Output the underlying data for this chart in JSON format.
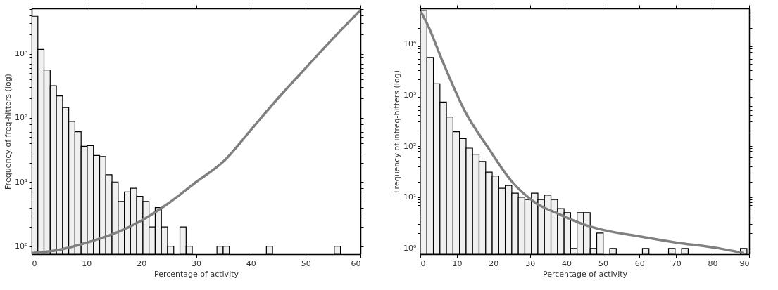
{
  "chart_data": [
    {
      "type": "histogram",
      "xlabel": "Percentage of activity",
      "ylabel": "Frequency of freq-hitters (log)",
      "log": "y",
      "grid": false,
      "color": "#f0f0f0",
      "bins": [
        0,
        1.13,
        2.25,
        3.38,
        4.51,
        5.64,
        6.76,
        7.89,
        9.02,
        10.14,
        11.27,
        12.4,
        13.52,
        14.65,
        15.78,
        16.91,
        18.03,
        19.16,
        20.29,
        21.41,
        22.54,
        23.67,
        24.79,
        25.92,
        27.05,
        28.18,
        29.3,
        30.43,
        31.56,
        32.68,
        33.81,
        34.94,
        36.06,
        37.19,
        38.32,
        39.45,
        40.57,
        41.7,
        42.83,
        43.95,
        45.08,
        46.21,
        47.33,
        48.46,
        49.59,
        50.72,
        51.84,
        52.97,
        54.1,
        55.22,
        56.35
      ],
      "values": [
        3840,
        1170,
        560,
        318,
        220,
        145,
        88,
        61,
        36,
        37,
        26,
        25,
        13,
        10,
        5,
        7,
        8,
        6,
        5,
        2,
        4,
        2,
        1,
        null,
        2,
        1,
        null,
        null,
        null,
        null,
        1,
        1,
        null,
        null,
        null,
        null,
        null,
        null,
        1,
        null,
        null,
        null,
        null,
        null,
        null,
        null,
        null,
        null,
        null,
        1
      ],
      "series": [
        {
          "type": "line",
          "color": "#808080",
          "x": [
            0,
            5,
            10,
            15,
            20,
            25,
            30,
            35,
            40,
            45,
            50,
            55,
            60
          ],
          "values": [
            0.78,
            0.88,
            1.13,
            1.57,
            2.5,
            4.7,
            10,
            21,
            65,
            205,
            600,
            1740,
            4800
          ]
        }
      ],
      "xlim": [
        0,
        60
      ],
      "xticks": [
        0,
        10,
        20,
        30,
        40,
        50,
        60
      ],
      "ylim": [
        0.75,
        5100
      ],
      "yticks": [
        {
          "value": 1,
          "label": "10⁰"
        },
        {
          "value": 2,
          "label": null
        },
        {
          "value": 3,
          "label": null
        },
        {
          "value": 4,
          "label": null
        },
        {
          "value": 5,
          "label": null
        },
        {
          "value": 6,
          "label": null
        },
        {
          "value": 7,
          "label": null
        },
        {
          "value": 8,
          "label": null
        },
        {
          "value": 9,
          "label": null
        },
        {
          "value": 10,
          "label": "10¹"
        },
        {
          "value": 20,
          "label": null
        },
        {
          "value": 30,
          "label": null
        },
        {
          "value": 40,
          "label": null
        },
        {
          "value": 50,
          "label": null
        },
        {
          "value": 60,
          "label": null
        },
        {
          "value": 70,
          "label": null
        },
        {
          "value": 80,
          "label": null
        },
        {
          "value": 90,
          "label": null
        },
        {
          "value": 100,
          "label": "10²"
        },
        {
          "value": 200,
          "label": null
        },
        {
          "value": 300,
          "label": null
        },
        {
          "value": 400,
          "label": null
        },
        {
          "value": 500,
          "label": null
        },
        {
          "value": 600,
          "label": null
        },
        {
          "value": 700,
          "label": null
        },
        {
          "value": 800,
          "label": null
        },
        {
          "value": 900,
          "label": null
        },
        {
          "value": 1000,
          "label": "10³"
        },
        {
          "value": 2000,
          "label": null
        },
        {
          "value": 3000,
          "label": null
        },
        {
          "value": 4000,
          "label": null
        },
        {
          "value": 5000,
          "label": null
        }
      ]
    },
    {
      "type": "histogram",
      "xlabel": "Percentage of activity",
      "ylabel": "Frequency of infreq-hitters (log)",
      "log": "y",
      "grid": false,
      "color": "#f0f0f0",
      "bins": [
        0,
        1.79,
        3.58,
        5.36,
        7.15,
        8.94,
        10.73,
        12.52,
        14.3,
        16.09,
        17.88,
        19.67,
        21.46,
        23.24,
        25.03,
        26.82,
        28.61,
        30.4,
        32.18,
        33.97,
        35.76,
        37.55,
        39.34,
        41.12,
        42.91,
        44.7,
        46.49,
        48.28,
        50.06,
        51.85,
        53.64,
        55.43,
        57.22,
        59,
        60.79,
        62.58,
        64.37,
        66.16,
        67.94,
        69.73,
        71.52,
        73.31,
        75.1,
        76.88,
        78.67,
        80.46,
        82.25,
        84.04,
        85.82,
        87.61,
        89.4
      ],
      "values": [
        44500,
        5400,
        1650,
        725,
        370,
        190,
        140,
        91,
        69,
        50,
        31,
        26,
        15,
        17,
        12,
        10,
        9,
        12,
        9,
        11,
        9,
        6,
        5,
        1,
        5,
        5,
        1,
        2,
        null,
        1,
        null,
        null,
        null,
        null,
        1,
        null,
        null,
        null,
        1,
        null,
        1,
        null,
        null,
        null,
        null,
        null,
        null,
        null,
        null,
        1
      ],
      "series": [
        {
          "type": "line",
          "color": "#808080",
          "x": [
            0,
            1.93,
            5.79,
            12.2,
            18.6,
            25.1,
            31.5,
            37.9,
            45,
            50,
            60.3,
            70,
            80,
            88.4
          ],
          "values": [
            44000,
            24000,
            5100,
            480,
            92,
            20,
            7.8,
            4.7,
            2.9,
            2.3,
            1.7,
            1.3,
            1.05,
            0.81
          ]
        }
      ],
      "xlim": [
        0,
        90
      ],
      "xticks": [
        0,
        10,
        20,
        30,
        40,
        50,
        60,
        70,
        80,
        90
      ],
      "ylim": [
        0.77,
        49000
      ],
      "yticks": [
        {
          "value": 1,
          "label": "10⁰"
        },
        {
          "value": 2,
          "label": null
        },
        {
          "value": 3,
          "label": null
        },
        {
          "value": 4,
          "label": null
        },
        {
          "value": 5,
          "label": null
        },
        {
          "value": 6,
          "label": null
        },
        {
          "value": 7,
          "label": null
        },
        {
          "value": 8,
          "label": null
        },
        {
          "value": 9,
          "label": null
        },
        {
          "value": 10,
          "label": "10¹"
        },
        {
          "value": 20,
          "label": null
        },
        {
          "value": 30,
          "label": null
        },
        {
          "value": 40,
          "label": null
        },
        {
          "value": 50,
          "label": null
        },
        {
          "value": 60,
          "label": null
        },
        {
          "value": 70,
          "label": null
        },
        {
          "value": 80,
          "label": null
        },
        {
          "value": 90,
          "label": null
        },
        {
          "value": 100,
          "label": "10²"
        },
        {
          "value": 200,
          "label": null
        },
        {
          "value": 300,
          "label": null
        },
        {
          "value": 400,
          "label": null
        },
        {
          "value": 500,
          "label": null
        },
        {
          "value": 600,
          "label": null
        },
        {
          "value": 700,
          "label": null
        },
        {
          "value": 800,
          "label": null
        },
        {
          "value": 900,
          "label": null
        },
        {
          "value": 1000,
          "label": "10³"
        },
        {
          "value": 2000,
          "label": null
        },
        {
          "value": 3000,
          "label": null
        },
        {
          "value": 4000,
          "label": null
        },
        {
          "value": 5000,
          "label": null
        },
        {
          "value": 6000,
          "label": null
        },
        {
          "value": 7000,
          "label": null
        },
        {
          "value": 8000,
          "label": null
        },
        {
          "value": 9000,
          "label": null
        },
        {
          "value": 10000,
          "label": "10⁴"
        },
        {
          "value": 20000,
          "label": null
        },
        {
          "value": 30000,
          "label": null
        },
        {
          "value": 40000,
          "label": null
        }
      ]
    }
  ]
}
